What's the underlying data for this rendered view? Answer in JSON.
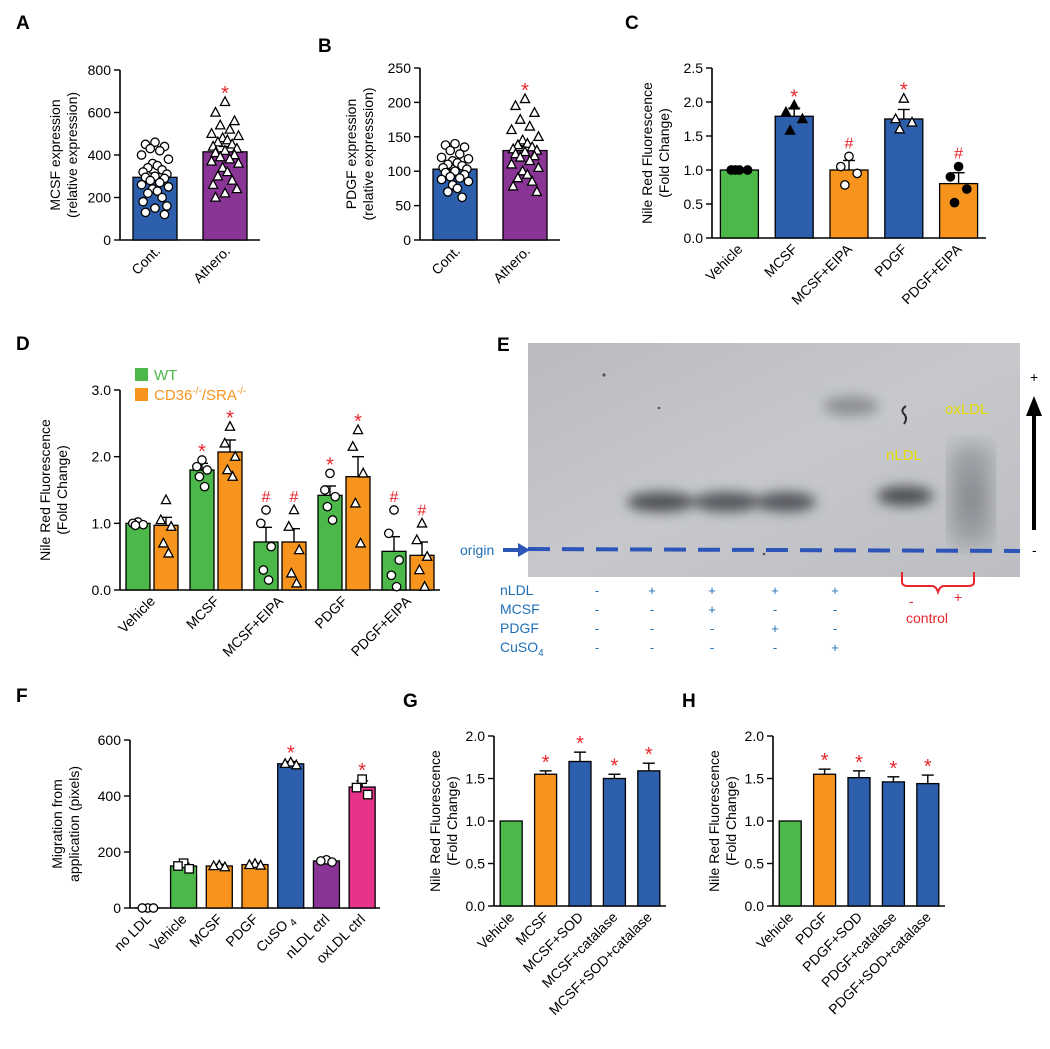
{
  "chart_data": [
    {
      "id": "A",
      "type": "bar",
      "panel_label": "A",
      "ylabel": [
        "MCSF expression",
        "(relative expression)"
      ],
      "ylim": [
        0,
        800
      ],
      "yticks": [
        0,
        200,
        400,
        600,
        800
      ],
      "categories": [
        "Cont.",
        "Athero."
      ],
      "values": [
        295,
        415
      ],
      "errors": [
        20,
        25
      ],
      "colors": [
        "#2e5fad",
        "#8a3596"
      ],
      "markers": [
        "circle",
        "triangle"
      ],
      "points": [
        [
          460,
          450,
          440,
          430,
          420,
          400,
          380,
          360,
          350,
          340,
          330,
          320,
          310,
          300,
          295,
          290,
          280,
          270,
          260,
          250,
          240,
          230,
          220,
          200,
          180,
          160,
          150,
          130,
          120
        ],
        [
          650,
          600,
          560,
          540,
          520,
          500,
          490,
          480,
          470,
          460,
          450,
          440,
          430,
          420,
          410,
          400,
          390,
          380,
          370,
          360,
          340,
          320,
          300,
          280,
          260,
          240,
          220,
          200
        ]
      ],
      "marks": [
        {
          "cat": 1,
          "text": "*"
        }
      ]
    },
    {
      "id": "B",
      "type": "bar",
      "panel_label": "B",
      "ylabel": [
        "PDGF expression",
        "(relative expresssion)"
      ],
      "ylim": [
        0,
        250
      ],
      "yticks": [
        0,
        50,
        100,
        150,
        200,
        250
      ],
      "categories": [
        "Cont.",
        "Athero."
      ],
      "values": [
        103,
        130
      ],
      "errors": [
        6,
        7
      ],
      "colors": [
        "#2e5fad",
        "#8a3596"
      ],
      "markers": [
        "circle",
        "triangle"
      ],
      "points": [
        [
          140,
          138,
          135,
          130,
          125,
          120,
          118,
          115,
          112,
          110,
          108,
          105,
          103,
          100,
          98,
          95,
          92,
          90,
          88,
          85,
          80,
          75,
          70,
          62
        ],
        [
          205,
          195,
          185,
          175,
          165,
          160,
          150,
          145,
          140,
          138,
          135,
          132,
          130,
          128,
          125,
          122,
          120,
          115,
          110,
          105,
          100,
          95,
          90,
          85,
          78,
          70
        ]
      ],
      "marks": [
        {
          "cat": 1,
          "text": "*"
        }
      ]
    },
    {
      "id": "C",
      "type": "bar",
      "panel_label": "C",
      "ylabel": [
        "Nile Red Fluorescence",
        "(Fold Change)"
      ],
      "ylim": [
        0,
        2.5
      ],
      "yticks": [
        0.0,
        0.5,
        1.0,
        1.5,
        2.0,
        2.5
      ],
      "tick_decimals": 1,
      "categories": [
        "Vehicle",
        "MCSF",
        "MCSF+EIPA",
        "PDGF",
        "PDGF+EIPA"
      ],
      "values": [
        1.0,
        1.79,
        1.0,
        1.75,
        0.8
      ],
      "errors": [
        0.01,
        0.12,
        0.14,
        0.14,
        0.16
      ],
      "colors": [
        "#4cb849",
        "#2e5fad",
        "#f7941d",
        "#2e5fad",
        "#f7941d"
      ],
      "markers": [
        "circle-filled",
        "triangle-filled",
        "circle",
        "triangle",
        "circle-filled"
      ],
      "points": [
        [
          1.0,
          1.0,
          1.0,
          1.0
        ],
        [
          1.95,
          1.85,
          1.75,
          1.58
        ],
        [
          1.2,
          1.05,
          0.95,
          0.78
        ],
        [
          2.05,
          1.75,
          1.7,
          1.6
        ],
        [
          1.05,
          0.9,
          0.72,
          0.52
        ]
      ],
      "marks": [
        {
          "cat": 1,
          "text": "*"
        },
        {
          "cat": 2,
          "text": "#"
        },
        {
          "cat": 3,
          "text": "*"
        },
        {
          "cat": 4,
          "text": "#"
        }
      ],
      "rotate_cats": true
    },
    {
      "id": "D",
      "type": "bar",
      "panel_label": "D",
      "ylabel": [
        "Nile Red Fluorescence",
        "(Fold Change)"
      ],
      "ylim": [
        0,
        3.0
      ],
      "yticks": [
        0.0,
        1.0,
        2.0,
        3.0
      ],
      "tick_decimals": 1,
      "categories": [
        "Vehicle",
        "MCSF",
        "MCSF+EIPA",
        "PDGF",
        "PDGF+EIPA"
      ],
      "legend": [
        {
          "name": "WT",
          "color": "#4cb849"
        },
        {
          "name": "CD36",
          "color": "#f7941d"
        }
      ],
      "series": [
        {
          "name": "WT",
          "values": [
            1.0,
            1.8,
            0.72,
            1.42,
            0.58
          ],
          "errors": [
            0.02,
            0.1,
            0.22,
            0.14,
            0.22
          ],
          "points": [
            [
              1.02,
              1.0,
              0.98,
              0.97
            ],
            [
              1.95,
              1.85,
              1.8,
              1.7,
              1.55
            ],
            [
              1.2,
              1.0,
              0.65,
              0.3,
              0.15
            ],
            [
              1.75,
              1.5,
              1.4,
              1.25,
              1.05
            ],
            [
              1.2,
              0.85,
              0.45,
              0.22,
              0.05
            ]
          ]
        },
        {
          "name": "CD36-/-/SRA-/-",
          "values": [
            0.97,
            2.07,
            0.72,
            1.7,
            0.52
          ],
          "errors": [
            0.12,
            0.18,
            0.2,
            0.3,
            0.2
          ],
          "points": [
            [
              1.35,
              1.05,
              0.95,
              0.7,
              0.55
            ],
            [
              2.45,
              2.2,
              2.0,
              1.8,
              1.7
            ],
            [
              1.2,
              0.95,
              0.6,
              0.25,
              0.1
            ],
            [
              2.4,
              2.15,
              1.75,
              1.3,
              0.7
            ],
            [
              1.0,
              0.75,
              0.5,
              0.3,
              0.05
            ]
          ]
        }
      ],
      "marks": [
        {
          "cat": 1,
          "s": 0,
          "text": "*"
        },
        {
          "cat": 1,
          "s": 1,
          "text": "*"
        },
        {
          "cat": 2,
          "s": 0,
          "text": "#"
        },
        {
          "cat": 2,
          "s": 1,
          "text": "#"
        },
        {
          "cat": 3,
          "s": 0,
          "text": "*"
        },
        {
          "cat": 3,
          "s": 1,
          "text": "*"
        },
        {
          "cat": 4,
          "s": 0,
          "text": "#"
        },
        {
          "cat": 4,
          "s": 1,
          "text": "#"
        }
      ],
      "rotate_cats": true
    },
    {
      "id": "F",
      "type": "bar",
      "panel_label": "F",
      "ylabel": [
        "Migration from",
        "application (pixels)"
      ],
      "ylim": [
        0,
        600
      ],
      "yticks": [
        0,
        200,
        400,
        600
      ],
      "categories": [
        "no LDL",
        "Vehicle",
        "MCSF",
        "PDGF",
        "CuSO",
        "nLDL ctrl",
        "oxLDL ctrl"
      ],
      "values": [
        0,
        150,
        150,
        155,
        515,
        168,
        432
      ],
      "errors": [
        0,
        10,
        6,
        5,
        8,
        6,
        22
      ],
      "colors": [
        "#4cb849",
        "#4cb849",
        "#f7941d",
        "#f7941d",
        "#2e5fad",
        "#8a3596",
        "#e8338a"
      ],
      "markers": [
        "circle",
        "square",
        "triangle",
        "triangle",
        "triangle",
        "circle",
        "square"
      ],
      "points": [
        [
          0,
          0,
          0
        ],
        [
          160,
          150,
          140
        ],
        [
          152,
          150,
          146
        ],
        [
          158,
          154,
          152
        ],
        [
          520,
          515,
          510
        ],
        [
          172,
          168,
          164
        ],
        [
          460,
          430,
          405
        ]
      ],
      "marks": [
        {
          "cat": 4,
          "text": "*"
        },
        {
          "cat": 6,
          "text": "*"
        }
      ],
      "rotate_cats": true
    },
    {
      "id": "G",
      "type": "bar",
      "panel_label": "G",
      "ylabel": [
        "Nile Red Fluorescence",
        "(Fold Change)"
      ],
      "ylim": [
        0,
        2.0
      ],
      "yticks": [
        0.0,
        0.5,
        1.0,
        1.5,
        2.0
      ],
      "tick_decimals": 1,
      "categories": [
        "Vehicle",
        "MCSF",
        "MCSF+SOD",
        "MCSF+catalase",
        "MCSF+SOD+catalase"
      ],
      "values": [
        1.0,
        1.55,
        1.7,
        1.5,
        1.59
      ],
      "errors": [
        0,
        0.04,
        0.11,
        0.05,
        0.09
      ],
      "colors": [
        "#4cb849",
        "#f7941d",
        "#2e5fad",
        "#2e5fad",
        "#2e5fad"
      ],
      "marks": [
        {
          "cat": 1,
          "text": "*"
        },
        {
          "cat": 2,
          "text": "*"
        },
        {
          "cat": 3,
          "text": "*"
        },
        {
          "cat": 4,
          "text": "*"
        }
      ],
      "rotate_cats": true
    },
    {
      "id": "H",
      "type": "bar",
      "panel_label": "H",
      "ylabel": [
        "Nile Red Fluorescence",
        "(Fold Change)"
      ],
      "ylim": [
        0,
        2.0
      ],
      "yticks": [
        0.0,
        0.5,
        1.0,
        1.5,
        2.0
      ],
      "tick_decimals": 1,
      "categories": [
        "Vehicle",
        "PDGF",
        "PDGF+SOD",
        "PDGF+catalase",
        "PDGF+SOD+catalase"
      ],
      "values": [
        1.0,
        1.55,
        1.51,
        1.46,
        1.44
      ],
      "errors": [
        0,
        0.06,
        0.08,
        0.06,
        0.1
      ],
      "colors": [
        "#4cb849",
        "#f7941d",
        "#2e5fad",
        "#2e5fad",
        "#2e5fad"
      ],
      "marks": [
        {
          "cat": 1,
          "text": "*"
        },
        {
          "cat": 2,
          "text": "*"
        },
        {
          "cat": 3,
          "text": "*"
        },
        {
          "cat": 4,
          "text": "*"
        }
      ],
      "rotate_cats": true
    }
  ],
  "panel_e": {
    "panel_label": "E",
    "origin_label": "origin",
    "band_labels": {
      "nldl": "nLDL",
      "oxldl": "oxLDL"
    },
    "arrow_plus": "+",
    "arrow_minus": "-",
    "row_labels": [
      "nLDL",
      "MCSF",
      "PDGF",
      "CuSO"
    ],
    "rows": [
      [
        "-",
        "+",
        "+",
        "+",
        "+"
      ],
      [
        "-",
        "-",
        "+",
        "-",
        "-"
      ],
      [
        "-",
        "-",
        "-",
        "+",
        "-"
      ],
      [
        "-",
        "-",
        "-",
        "-",
        "+"
      ]
    ],
    "control_signs": [
      "-",
      "+"
    ],
    "control_label": "control"
  },
  "subscripts": {
    "so4": "4",
    "cd36_sup": "-/-",
    "sra_sup": "-/-",
    "cd36": "CD36",
    "sra": "/SRA"
  }
}
